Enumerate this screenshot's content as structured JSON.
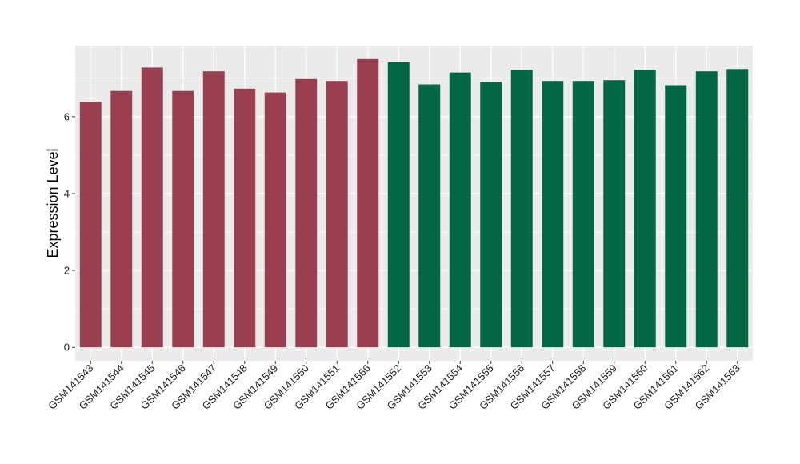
{
  "chart_data": {
    "type": "bar",
    "title": "",
    "xlabel": "",
    "ylabel": "Expression Level",
    "ylim": [
      -0.35,
      7.85
    ],
    "yticks": [
      0,
      2,
      4,
      6
    ],
    "grid": true,
    "legend": "none",
    "categories": [
      "GSM141543",
      "GSM141544",
      "GSM141545",
      "GSM141546",
      "GSM141547",
      "GSM141548",
      "GSM141549",
      "GSM141550",
      "GSM141551",
      "GSM141566",
      "GSM141552",
      "GSM141553",
      "GSM141554",
      "GSM141555",
      "GSM141556",
      "GSM141557",
      "GSM141558",
      "GSM141559",
      "GSM141560",
      "GSM141561",
      "GSM141562",
      "GSM141563"
    ],
    "values": [
      6.38,
      6.67,
      7.28,
      6.67,
      7.18,
      6.73,
      6.63,
      6.98,
      6.93,
      7.5,
      7.42,
      6.84,
      7.15,
      6.9,
      7.22,
      6.93,
      6.93,
      6.95,
      7.22,
      6.82,
      7.18,
      7.24
    ],
    "groups": [
      0,
      0,
      0,
      0,
      0,
      0,
      0,
      0,
      0,
      0,
      1,
      1,
      1,
      1,
      1,
      1,
      1,
      1,
      1,
      1,
      1,
      1
    ],
    "colors": [
      "#9a3f4f",
      "#006645"
    ],
    "panel_color": "#ebebeb",
    "grid_color": "#ffffff"
  }
}
